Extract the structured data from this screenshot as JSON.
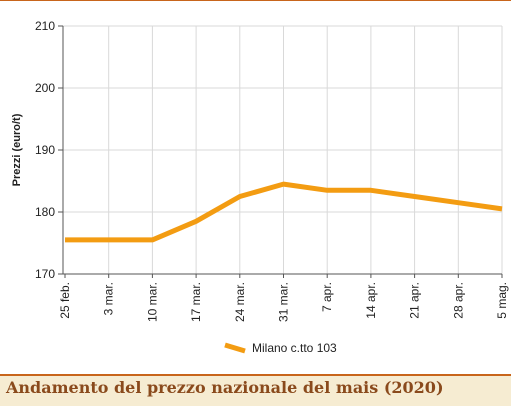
{
  "chart_data": {
    "type": "line",
    "title": "Andamento del prezzo nazionale del mais (2020)",
    "ylabel": "Prezzi (euro/t)",
    "xlabel": "",
    "categories": [
      "25 feb.",
      "3 mar.",
      "10 mar.",
      "17 mar.",
      "24 mar.",
      "31 mar.",
      "7 apr.",
      "14 apr.",
      "21 apr.",
      "28 apr.",
      "5 mag."
    ],
    "ylim": [
      170,
      210
    ],
    "yticks": [
      170,
      180,
      190,
      200,
      210
    ],
    "grid": true,
    "legend_position": "bottom",
    "series": [
      {
        "name": "Milano  c.tto 103",
        "color": "#f39c12",
        "values": [
          175.5,
          175.5,
          175.5,
          178.5,
          182.5,
          184.5,
          183.5,
          183.5,
          182.5,
          181.5,
          180.5
        ]
      }
    ]
  },
  "footer": {
    "title": "Andamento del prezzo nazionale del mais (2020)"
  }
}
